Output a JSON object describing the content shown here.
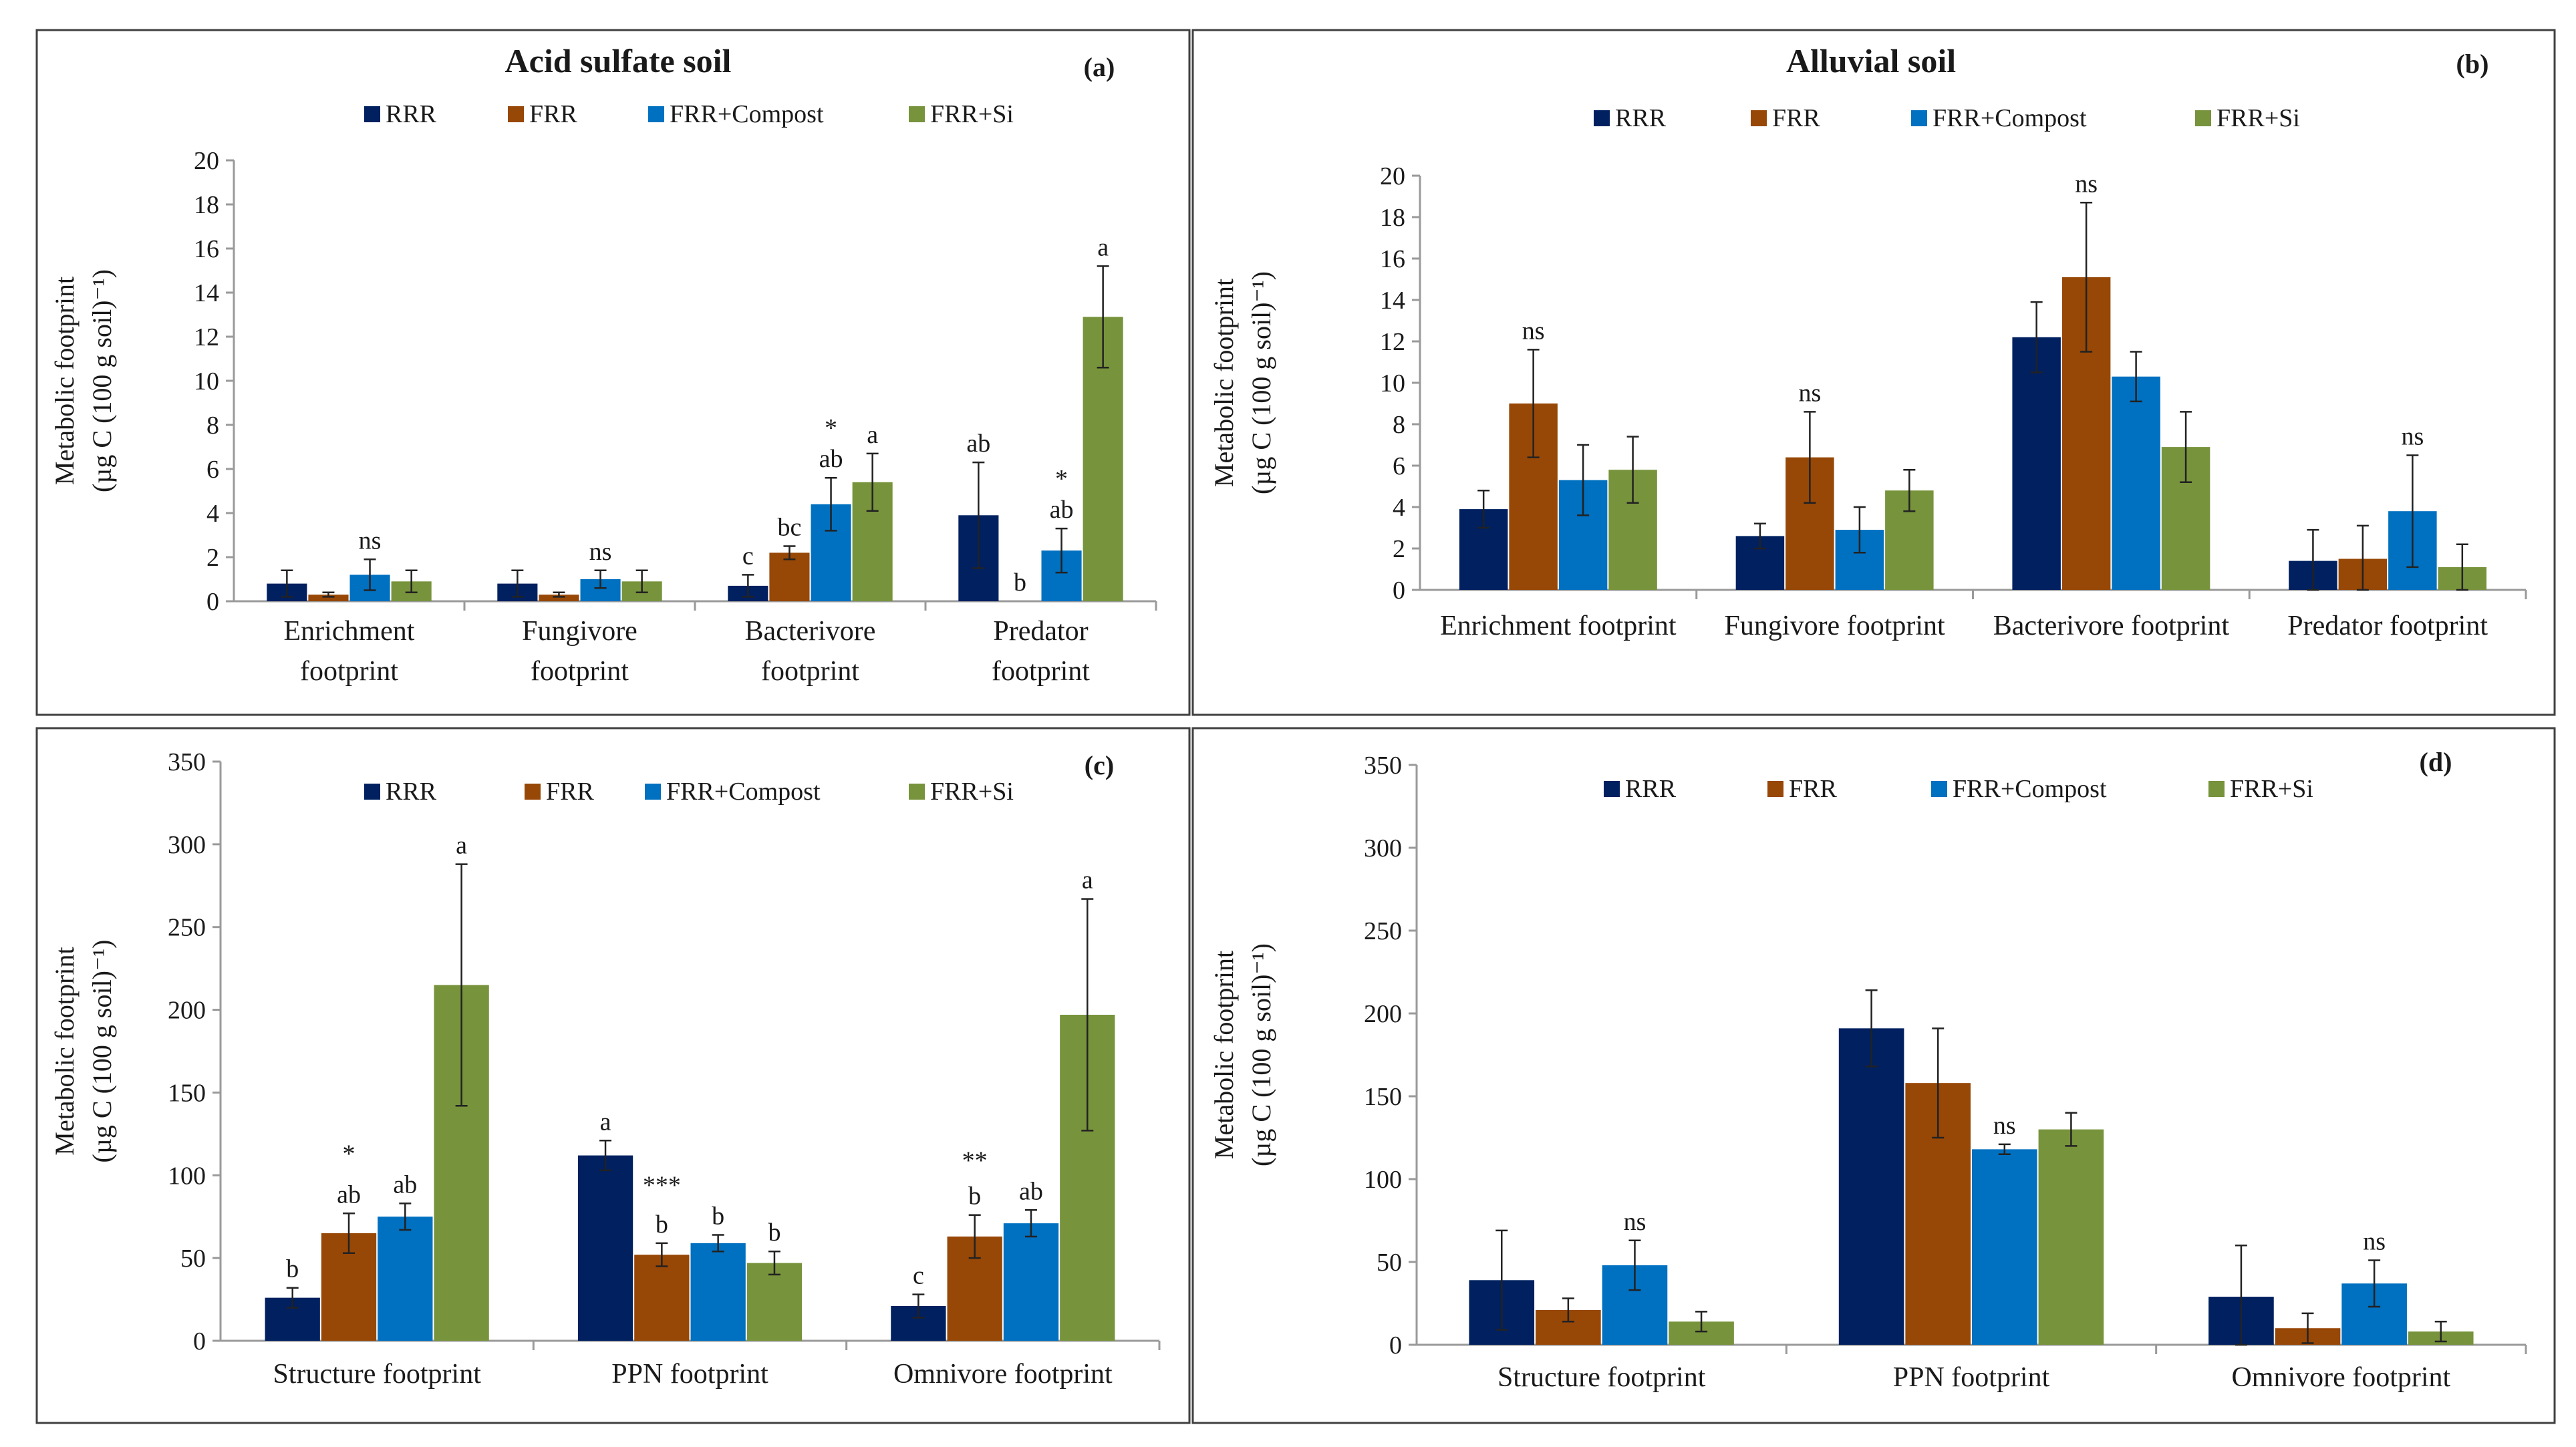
{
  "colors": {
    "RRR": "#002060",
    "FRR": "#974706",
    "FRR+Compost": "#0070C0",
    "FRR+Si": "#77933C"
  },
  "legend": [
    "RRR",
    "FRR",
    "FRR+Compost",
    "FRR+Si"
  ],
  "ylabel_line1": "Metabolic footprint",
  "ylabel_line2": "(µg C (100 g soil)⁻¹)",
  "chart_data": [
    {
      "id": "a",
      "type": "bar",
      "title": "Acid sulfate soil",
      "tag": "(a)",
      "ylim": [
        0,
        20
      ],
      "yticks": [
        0,
        2,
        4,
        6,
        8,
        10,
        12,
        14,
        16,
        18,
        20
      ],
      "categories": [
        [
          "Enrichment",
          "footprint"
        ],
        [
          "Fungivore",
          "footprint"
        ],
        [
          "Bacterivore",
          "footprint"
        ],
        [
          "Predator",
          "footprint"
        ]
      ],
      "series": [
        {
          "name": "RRR",
          "values": [
            0.8,
            0.8,
            0.7,
            3.9
          ],
          "errors": [
            0.6,
            0.6,
            0.5,
            2.4
          ],
          "labels": [
            "",
            "",
            "c",
            "ab"
          ]
        },
        {
          "name": "FRR",
          "values": [
            0.3,
            0.3,
            2.2,
            0.0
          ],
          "errors": [
            0.1,
            0.1,
            0.3,
            0.0
          ],
          "labels": [
            "",
            "",
            "bc",
            "b"
          ]
        },
        {
          "name": "FRR+Compost",
          "values": [
            1.2,
            1.0,
            4.4,
            2.3
          ],
          "errors": [
            0.7,
            0.4,
            1.2,
            1.0
          ],
          "labels": [
            "ns",
            "ns",
            "ab",
            "ab"
          ]
        },
        {
          "name": "FRR+Si",
          "values": [
            0.9,
            0.9,
            5.4,
            12.9
          ],
          "errors": [
            0.5,
            0.5,
            1.3,
            2.3
          ],
          "labels": [
            "",
            "",
            "a",
            "a"
          ]
        }
      ],
      "group_marks": [
        "",
        "",
        "*",
        "*"
      ]
    },
    {
      "id": "b",
      "type": "bar",
      "title": "Alluvial soil",
      "tag": "(b)",
      "ylim": [
        0,
        20
      ],
      "yticks": [
        0,
        2,
        4,
        6,
        8,
        10,
        12,
        14,
        16,
        18,
        20
      ],
      "categories": [
        [
          "Enrichment footprint"
        ],
        [
          "Fungivore footprint"
        ],
        [
          "Bacterivore footprint"
        ],
        [
          "Predator footprint"
        ]
      ],
      "series": [
        {
          "name": "RRR",
          "values": [
            3.9,
            2.6,
            12.2,
            1.4
          ],
          "errors": [
            0.9,
            0.6,
            1.7,
            1.5
          ],
          "labels": [
            "",
            "",
            "",
            ""
          ]
        },
        {
          "name": "FRR",
          "values": [
            9.0,
            6.4,
            15.1,
            1.5
          ],
          "errors": [
            2.6,
            2.2,
            3.6,
            1.6
          ],
          "labels": [
            "ns",
            "ns",
            "ns",
            ""
          ]
        },
        {
          "name": "FRR+Compost",
          "values": [
            5.3,
            2.9,
            10.3,
            3.8
          ],
          "errors": [
            1.7,
            1.1,
            1.2,
            2.7
          ],
          "labels": [
            "",
            "",
            "",
            "ns"
          ]
        },
        {
          "name": "FRR+Si",
          "values": [
            5.8,
            4.8,
            6.9,
            1.1
          ],
          "errors": [
            1.6,
            1.0,
            1.7,
            1.1
          ],
          "labels": [
            "",
            "",
            "",
            ""
          ]
        }
      ],
      "group_marks": [
        "",
        "",
        "",
        ""
      ]
    },
    {
      "id": "c",
      "type": "bar",
      "title": "",
      "tag": "(c)",
      "ylim": [
        0,
        350
      ],
      "yticks": [
        0,
        50,
        100,
        150,
        200,
        250,
        300,
        350
      ],
      "categories": [
        [
          "Structure footprint"
        ],
        [
          "PPN footprint"
        ],
        [
          "Omnivore footprint"
        ]
      ],
      "series": [
        {
          "name": "RRR",
          "values": [
            26,
            112,
            21
          ],
          "errors": [
            6,
            9,
            7
          ],
          "labels": [
            "b",
            "a",
            "c"
          ]
        },
        {
          "name": "FRR",
          "values": [
            65,
            52,
            63
          ],
          "errors": [
            12,
            7,
            13
          ],
          "labels": [
            "ab",
            "b",
            "b"
          ]
        },
        {
          "name": "FRR+Compost",
          "values": [
            75,
            59,
            71
          ],
          "errors": [
            8,
            5,
            8
          ],
          "labels": [
            "ab",
            "b",
            "ab"
          ]
        },
        {
          "name": "FRR+Si",
          "values": [
            215,
            47,
            197
          ],
          "errors": [
            73,
            7,
            70
          ],
          "labels": [
            "a",
            "b",
            "a"
          ]
        }
      ],
      "group_marks": [
        "*",
        "***",
        "**"
      ]
    },
    {
      "id": "d",
      "type": "bar",
      "title": "",
      "tag": "(d)",
      "ylim": [
        0,
        350
      ],
      "yticks": [
        0,
        50,
        100,
        150,
        200,
        250,
        300,
        350
      ],
      "categories": [
        [
          "Structure footprint"
        ],
        [
          "PPN footprint"
        ],
        [
          "Omnivore footprint"
        ]
      ],
      "series": [
        {
          "name": "RRR",
          "values": [
            39,
            191,
            29
          ],
          "errors": [
            30,
            23,
            31
          ],
          "labels": [
            "",
            "",
            ""
          ]
        },
        {
          "name": "FRR",
          "values": [
            21,
            158,
            10
          ],
          "errors": [
            7,
            33,
            9
          ],
          "labels": [
            "",
            "",
            ""
          ]
        },
        {
          "name": "FRR+Compost",
          "values": [
            48,
            118,
            37
          ],
          "errors": [
            15,
            3,
            14
          ],
          "labels": [
            "ns",
            "ns",
            "ns"
          ]
        },
        {
          "name": "FRR+Si",
          "values": [
            14,
            130,
            8
          ],
          "errors": [
            6,
            10,
            6
          ],
          "labels": [
            "",
            "",
            ""
          ]
        }
      ],
      "group_marks": [
        "",
        "",
        ""
      ]
    }
  ]
}
